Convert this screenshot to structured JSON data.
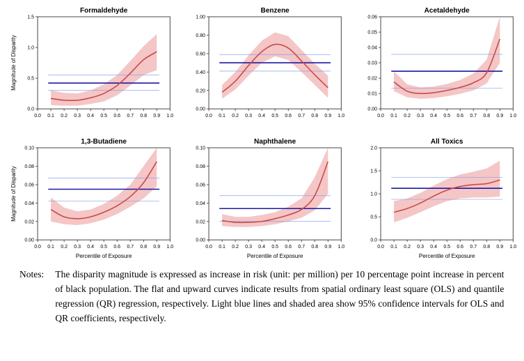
{
  "global": {
    "background_color": "#ffffff",
    "axis_color": "#333333",
    "tick_color": "#333333",
    "title_fontsize": 10,
    "title_fontweight": "bold",
    "axis_label_fontsize": 8,
    "tick_fontsize": 7,
    "ols_line_color": "#1a1aa6",
    "ols_ci_color": "#8aa0e6",
    "qr_line_color": "#c94a4a",
    "qr_band_color": "#f2b3b3",
    "qr_band_opacity": 0.75,
    "line_width_ols": 1.6,
    "line_width_olsci": 0.7,
    "line_width_qr": 1.6,
    "x_label": "Percentile of Exposure",
    "y_label": "Magnitude of Disparity",
    "xlim": [
      0.0,
      1.0
    ],
    "xticks": [
      0.0,
      0.1,
      0.2,
      0.3,
      0.4,
      0.5,
      0.6,
      0.7,
      0.8,
      0.9,
      1.0
    ],
    "caption_notes_label": "Notes:",
    "caption_text": "The disparity magnitude is expressed as increase in risk (unit: per million) per 10 percentage point increase in percent of black population. The flat and upward curves indicate results from spatial ordinary least square (OLS) and quantile regression (QR) regression, respectively. Light blue lines and shaded area show 95% confidence intervals for OLS and QR coefficients, respectively."
  },
  "panels": [
    {
      "title": "Formaldehyde",
      "ylim": [
        0.0,
        1.5
      ],
      "yticks": [
        0.0,
        0.5,
        1.0,
        1.5
      ],
      "ols_value": 0.42,
      "ols_ci": [
        0.3,
        0.55
      ],
      "qr_x": [
        0.1,
        0.2,
        0.3,
        0.4,
        0.5,
        0.6,
        0.7,
        0.8,
        0.9
      ],
      "qr": [
        0.17,
        0.14,
        0.14,
        0.18,
        0.25,
        0.38,
        0.58,
        0.8,
        0.93
      ],
      "qr_lo": [
        0.06,
        0.05,
        0.05,
        0.08,
        0.12,
        0.22,
        0.38,
        0.55,
        0.63
      ],
      "qr_hi": [
        0.3,
        0.26,
        0.25,
        0.3,
        0.4,
        0.55,
        0.78,
        1.02,
        1.22
      ]
    },
    {
      "title": "Benzene",
      "ylim": [
        0.0,
        1.0
      ],
      "yticks": [
        0.0,
        0.2,
        0.4,
        0.6,
        0.8,
        1.0
      ],
      "ols_value": 0.5,
      "ols_ci": [
        0.41,
        0.59
      ],
      "qr_x": [
        0.1,
        0.2,
        0.3,
        0.4,
        0.5,
        0.6,
        0.7,
        0.8,
        0.9
      ],
      "qr": [
        0.18,
        0.3,
        0.47,
        0.62,
        0.7,
        0.66,
        0.52,
        0.37,
        0.23
      ],
      "qr_lo": [
        0.11,
        0.21,
        0.36,
        0.5,
        0.57,
        0.53,
        0.4,
        0.26,
        0.12
      ],
      "qr_hi": [
        0.26,
        0.4,
        0.58,
        0.74,
        0.83,
        0.79,
        0.64,
        0.49,
        0.36
      ]
    },
    {
      "title": "Acetaldehyde",
      "ylim": [
        0.0,
        0.06
      ],
      "yticks": [
        0.0,
        0.01,
        0.02,
        0.03,
        0.04,
        0.05,
        0.06
      ],
      "ols_value": 0.0245,
      "ols_ci": [
        0.0135,
        0.0355
      ],
      "qr_x": [
        0.1,
        0.2,
        0.3,
        0.4,
        0.5,
        0.6,
        0.7,
        0.8,
        0.9
      ],
      "qr": [
        0.0175,
        0.0115,
        0.01,
        0.0105,
        0.012,
        0.014,
        0.017,
        0.0235,
        0.0455
      ],
      "qr_lo": [
        0.0115,
        0.0075,
        0.0065,
        0.007,
        0.0082,
        0.0098,
        0.012,
        0.0165,
        0.03
      ],
      "qr_hi": [
        0.0245,
        0.016,
        0.014,
        0.0145,
        0.0162,
        0.0188,
        0.023,
        0.032,
        0.06
      ]
    },
    {
      "title": "1,3-Butadiene",
      "ylim": [
        0.0,
        0.1
      ],
      "yticks": [
        0.0,
        0.02,
        0.04,
        0.06,
        0.08,
        0.1
      ],
      "ols_value": 0.055,
      "ols_ci": [
        0.042,
        0.067
      ],
      "qr_x": [
        0.1,
        0.2,
        0.3,
        0.4,
        0.5,
        0.6,
        0.7,
        0.8,
        0.9
      ],
      "qr": [
        0.033,
        0.025,
        0.023,
        0.025,
        0.03,
        0.037,
        0.047,
        0.062,
        0.085
      ],
      "qr_lo": [
        0.02,
        0.017,
        0.016,
        0.018,
        0.022,
        0.028,
        0.036,
        0.045,
        0.058
      ],
      "qr_hi": [
        0.046,
        0.035,
        0.031,
        0.033,
        0.039,
        0.048,
        0.06,
        0.08,
        0.1
      ]
    },
    {
      "title": "Naphthalene",
      "ylim": [
        0.0,
        0.1
      ],
      "yticks": [
        0.0,
        0.02,
        0.04,
        0.06,
        0.08,
        0.1
      ],
      "ols_value": 0.034,
      "ols_ci": [
        0.02,
        0.048
      ],
      "qr_x": [
        0.1,
        0.2,
        0.3,
        0.4,
        0.5,
        0.6,
        0.7,
        0.8,
        0.9
      ],
      "qr": [
        0.021,
        0.019,
        0.019,
        0.02,
        0.023,
        0.027,
        0.033,
        0.048,
        0.085
      ],
      "qr_lo": [
        0.015,
        0.014,
        0.014,
        0.015,
        0.017,
        0.02,
        0.024,
        0.032,
        0.05
      ],
      "qr_hi": [
        0.028,
        0.025,
        0.025,
        0.027,
        0.03,
        0.036,
        0.045,
        0.068,
        0.1
      ]
    },
    {
      "title": "All Toxics",
      "ylim": [
        0.0,
        2.0
      ],
      "yticks": [
        0.0,
        0.5,
        1.0,
        1.5,
        2.0
      ],
      "ols_value": 1.12,
      "ols_ci": [
        0.88,
        1.36
      ],
      "qr_x": [
        0.1,
        0.2,
        0.3,
        0.4,
        0.5,
        0.6,
        0.7,
        0.8,
        0.9
      ],
      "qr": [
        0.6,
        0.68,
        0.8,
        0.95,
        1.08,
        1.16,
        1.2,
        1.22,
        1.3
      ],
      "qr_lo": [
        0.38,
        0.48,
        0.6,
        0.73,
        0.84,
        0.9,
        0.92,
        0.92,
        0.94
      ],
      "qr_hi": [
        0.84,
        0.9,
        1.02,
        1.18,
        1.32,
        1.42,
        1.48,
        1.55,
        1.72
      ]
    }
  ]
}
